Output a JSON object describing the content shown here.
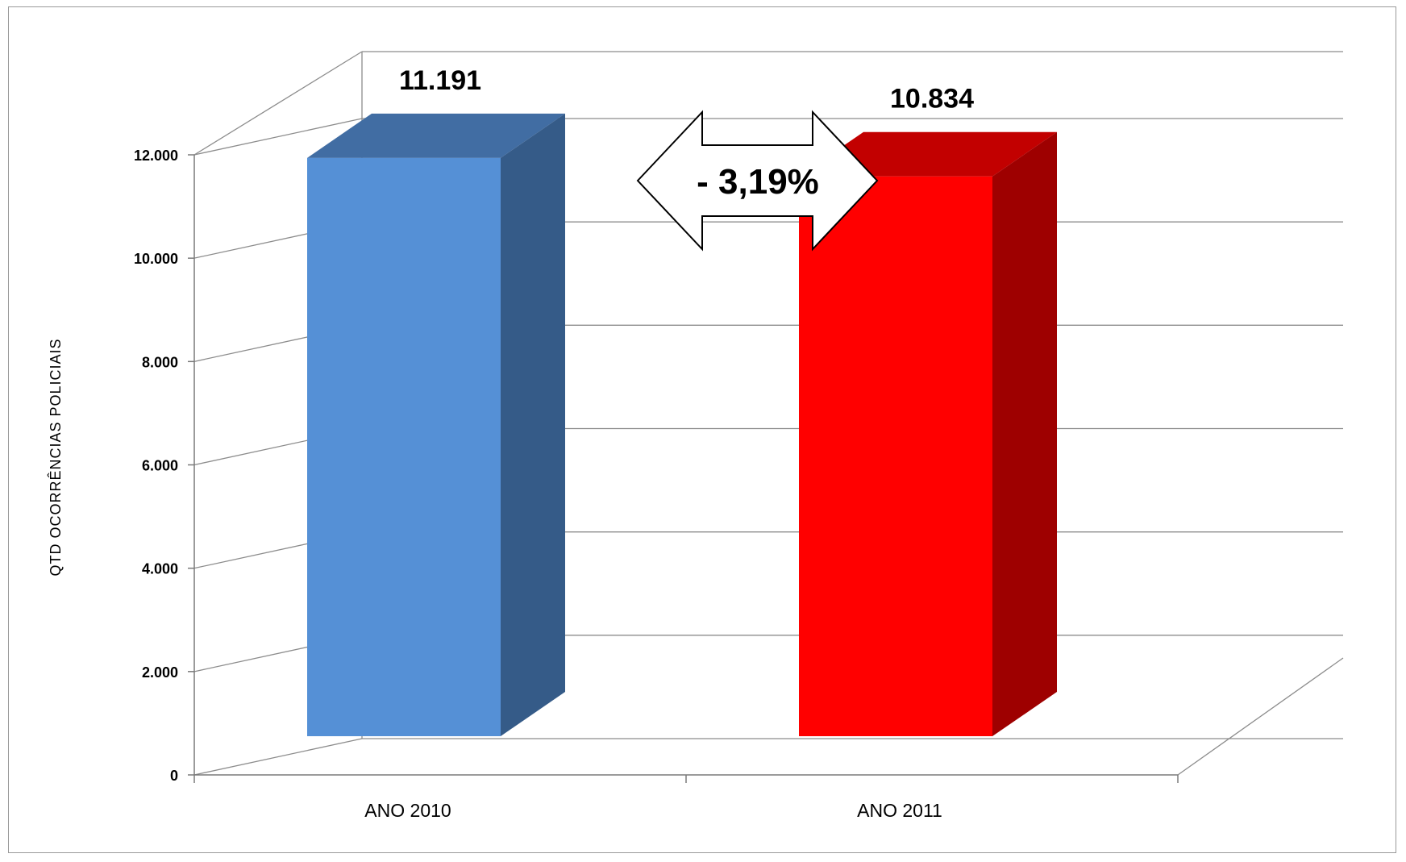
{
  "chart_data": {
    "type": "bar",
    "categories": [
      "ANO 2010",
      "ANO 2011"
    ],
    "values": [
      11191,
      10834
    ],
    "value_labels": [
      "11.191",
      "10.834"
    ],
    "ylabel": "QTD OCORRÊNCIAS POLICIAIS",
    "ylim": [
      0,
      12000
    ],
    "yticks": [
      0,
      2000,
      4000,
      6000,
      8000,
      10000,
      12000
    ],
    "ytick_labels": [
      "0",
      "2.000",
      "4.000",
      "6.000",
      "8.000",
      "10.000",
      "12.000"
    ],
    "grid": true,
    "three_d": true,
    "colors": {
      "ANO 2010": {
        "front": "#5590d6",
        "top": "#416da3",
        "side": "#355b88"
      },
      "ANO 2011": {
        "front": "#ff0000",
        "top": "#c20000",
        "side": "#9e0000"
      }
    },
    "annotation": {
      "type": "double-arrow",
      "label": "- 3,19%"
    }
  }
}
